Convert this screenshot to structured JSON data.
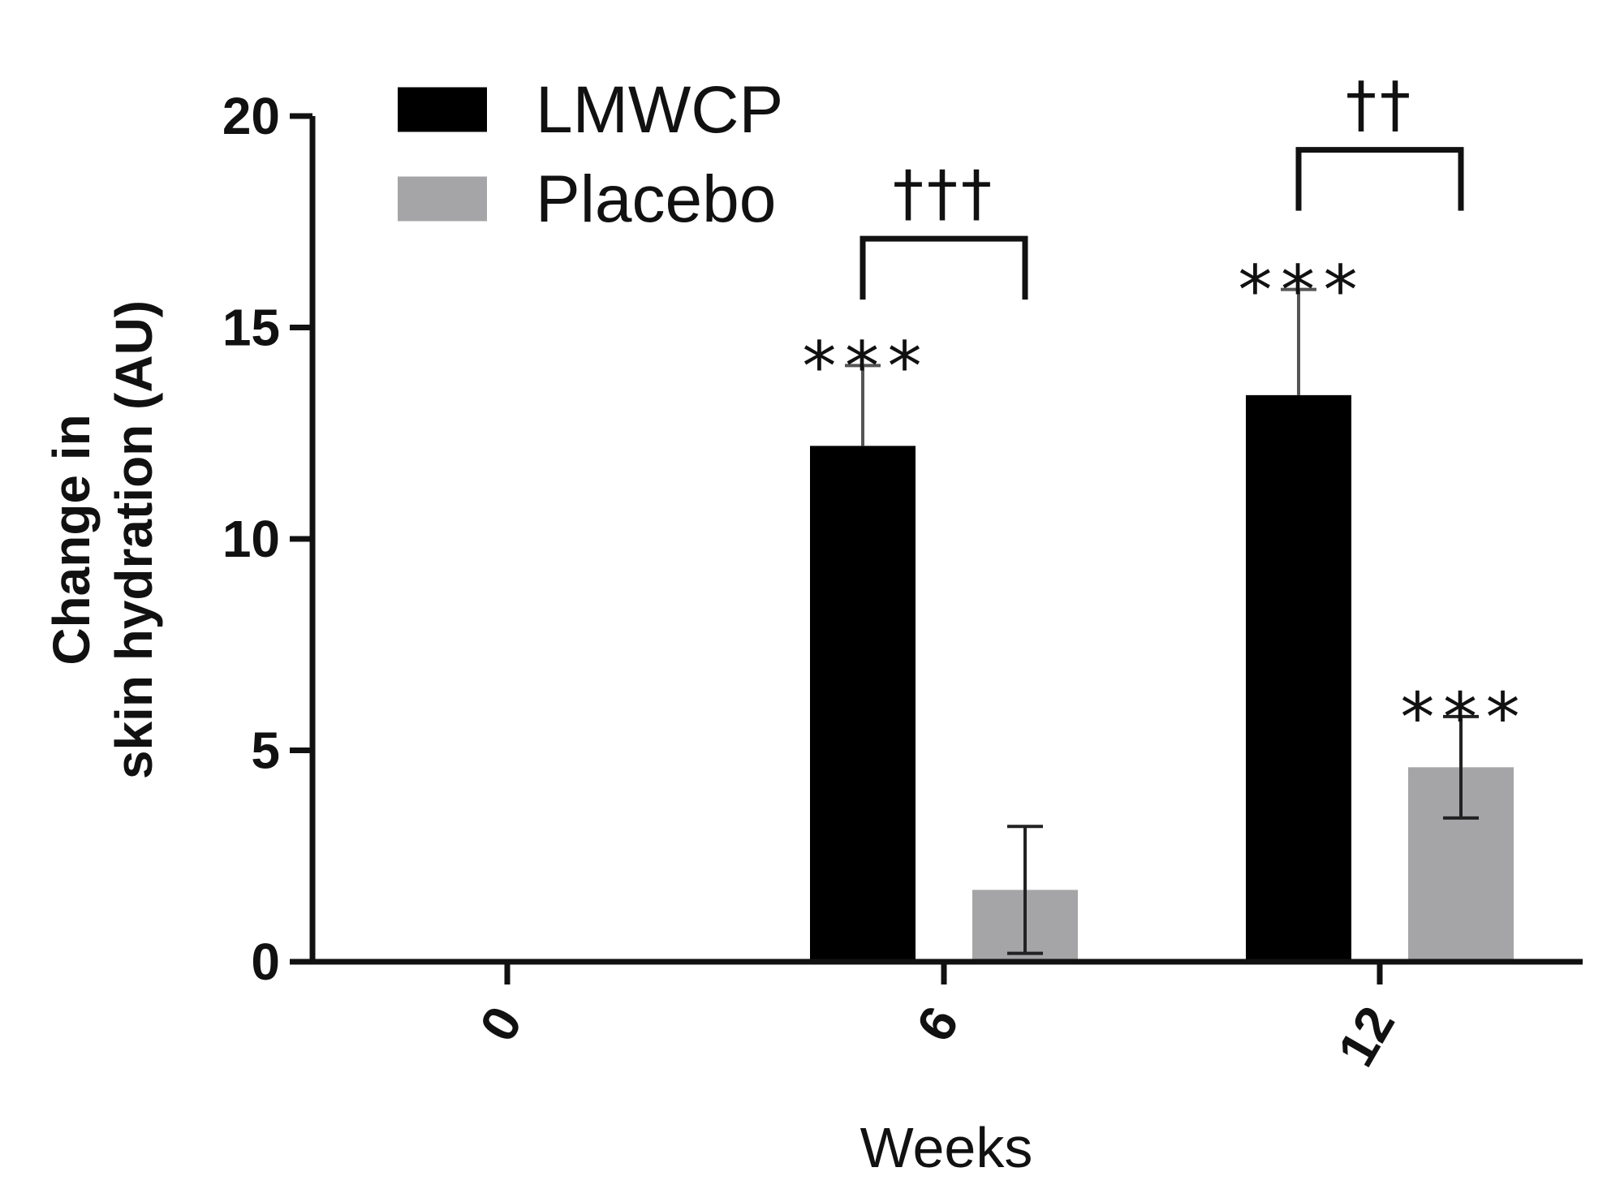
{
  "chart_data": {
    "type": "bar",
    "categories": [
      "0",
      "6",
      "12"
    ],
    "series": [
      {
        "name": "LMWCP",
        "color": "#000000",
        "values": [
          0,
          12.2,
          13.4
        ],
        "error": [
          0,
          1.9,
          2.5
        ]
      },
      {
        "name": "Placebo",
        "color": "#a5a5a7",
        "values": [
          0,
          1.7,
          4.6
        ],
        "error": [
          0,
          1.5,
          1.2
        ]
      }
    ],
    "title": "",
    "xlabel": "Weeks",
    "ylabel_lines": [
      "Change in",
      "skin hydration (AU)"
    ],
    "ylim": [
      0,
      20
    ],
    "yticks": [
      0,
      5,
      10,
      15,
      20
    ],
    "legend_position": "top-left",
    "annotations": {
      "stars": [
        {
          "category_index": 1,
          "series_index": 0,
          "text": "***"
        },
        {
          "category_index": 2,
          "series_index": 0,
          "text": "***"
        },
        {
          "category_index": 2,
          "series_index": 1,
          "text": "***"
        }
      ],
      "brackets": [
        {
          "category_index": 1,
          "text": "†††",
          "y": 17.1
        },
        {
          "category_index": 2,
          "text": "††",
          "y": 19.2
        }
      ]
    }
  }
}
